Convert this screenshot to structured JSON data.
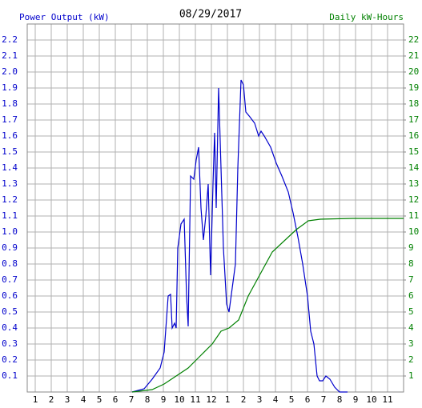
{
  "chart_data": {
    "type": "line",
    "title": "08/29/2017",
    "ylabel": "Power Output (kW)",
    "y2label": "Daily kW-Hours",
    "xlim": [
      0.5,
      24
    ],
    "ylim": [
      0,
      2.3
    ],
    "y2lim": [
      0,
      23
    ],
    "grid": true,
    "xticks": [
      1,
      2,
      3,
      4,
      5,
      6,
      7,
      8,
      9,
      10,
      11,
      12,
      {
        "value": 13,
        "label": "1"
      },
      {
        "value": 14,
        "label": "2"
      },
      {
        "value": 15,
        "label": "3"
      },
      {
        "value": 16,
        "label": "4"
      },
      {
        "value": 17,
        "label": "5"
      },
      {
        "value": 18,
        "label": "6"
      },
      {
        "value": 19,
        "label": "7"
      },
      {
        "value": 20,
        "label": "8"
      },
      {
        "value": 21,
        "label": "9"
      },
      {
        "value": 22,
        "label": "10"
      },
      {
        "value": 23,
        "label": "11"
      }
    ],
    "yticks": [
      0.1,
      0.2,
      0.3,
      0.4,
      0.5,
      0.6,
      0.7,
      0.8,
      0.9,
      {
        "value": 1,
        "label": "1.0"
      },
      1.1,
      1.2,
      1.3,
      1.4,
      1.5,
      1.6,
      1.7,
      1.8,
      1.9,
      {
        "value": 2,
        "label": "2.0"
      },
      2.1,
      2.2
    ],
    "y2ticks": [
      1,
      2,
      3,
      4,
      5,
      6,
      7,
      8,
      9,
      10,
      11,
      12,
      13,
      14,
      15,
      16,
      17,
      18,
      19,
      20,
      21,
      22
    ],
    "series": [
      {
        "name": "Power Output (kW)",
        "color": "#0000cc",
        "x": [
          7.05,
          7.8,
          8.3,
          8.8,
          9.05,
          9.3,
          9.45,
          9.55,
          9.7,
          9.8,
          9.9,
          10.1,
          10.3,
          10.45,
          10.55,
          10.7,
          10.9,
          11.05,
          11.2,
          11.35,
          11.5,
          11.65,
          11.8,
          11.95,
          12.1,
          12.2,
          12.3,
          12.45,
          12.6,
          12.75,
          12.95,
          13.1,
          13.3,
          13.5,
          13.65,
          13.85,
          14.0,
          14.15,
          14.4,
          14.7,
          14.95,
          15.1,
          15.3,
          15.7,
          16.05,
          16.4,
          16.8,
          17.1,
          17.4,
          17.7,
          18.0,
          18.2,
          18.4,
          18.6,
          18.75,
          18.95,
          19.15,
          19.4,
          19.7,
          20.0,
          20.5
        ],
        "values": [
          0,
          0.02,
          0.08,
          0.15,
          0.25,
          0.6,
          0.61,
          0.4,
          0.43,
          0.4,
          0.9,
          1.05,
          1.08,
          0.6,
          0.41,
          1.35,
          1.33,
          1.45,
          1.53,
          1.15,
          0.95,
          1.1,
          1.3,
          0.73,
          1.3,
          1.62,
          1.15,
          1.9,
          1.4,
          0.9,
          0.55,
          0.5,
          0.65,
          0.8,
          1.4,
          1.95,
          1.92,
          1.75,
          1.72,
          1.68,
          1.6,
          1.63,
          1.6,
          1.53,
          1.43,
          1.35,
          1.25,
          1.12,
          0.97,
          0.8,
          0.6,
          0.38,
          0.3,
          0.1,
          0.07,
          0.07,
          0.1,
          0.08,
          0.03,
          0,
          0
        ]
      },
      {
        "name": "Daily kW-Hours",
        "color": "#008000",
        "axis": "y2",
        "x": [
          7.05,
          8.3,
          9.05,
          9.8,
          10.55,
          11.3,
          12.05,
          12.6,
          13.1,
          13.7,
          14.3,
          15.8,
          17.3,
          18.05,
          18.8,
          20.8,
          24
        ],
        "values": [
          0,
          0.15,
          0.5,
          1.0,
          1.5,
          2.25,
          3.0,
          3.8,
          4.0,
          4.5,
          6.0,
          8.75,
          10.15,
          10.7,
          10.8,
          10.85,
          10.85
        ]
      }
    ]
  }
}
